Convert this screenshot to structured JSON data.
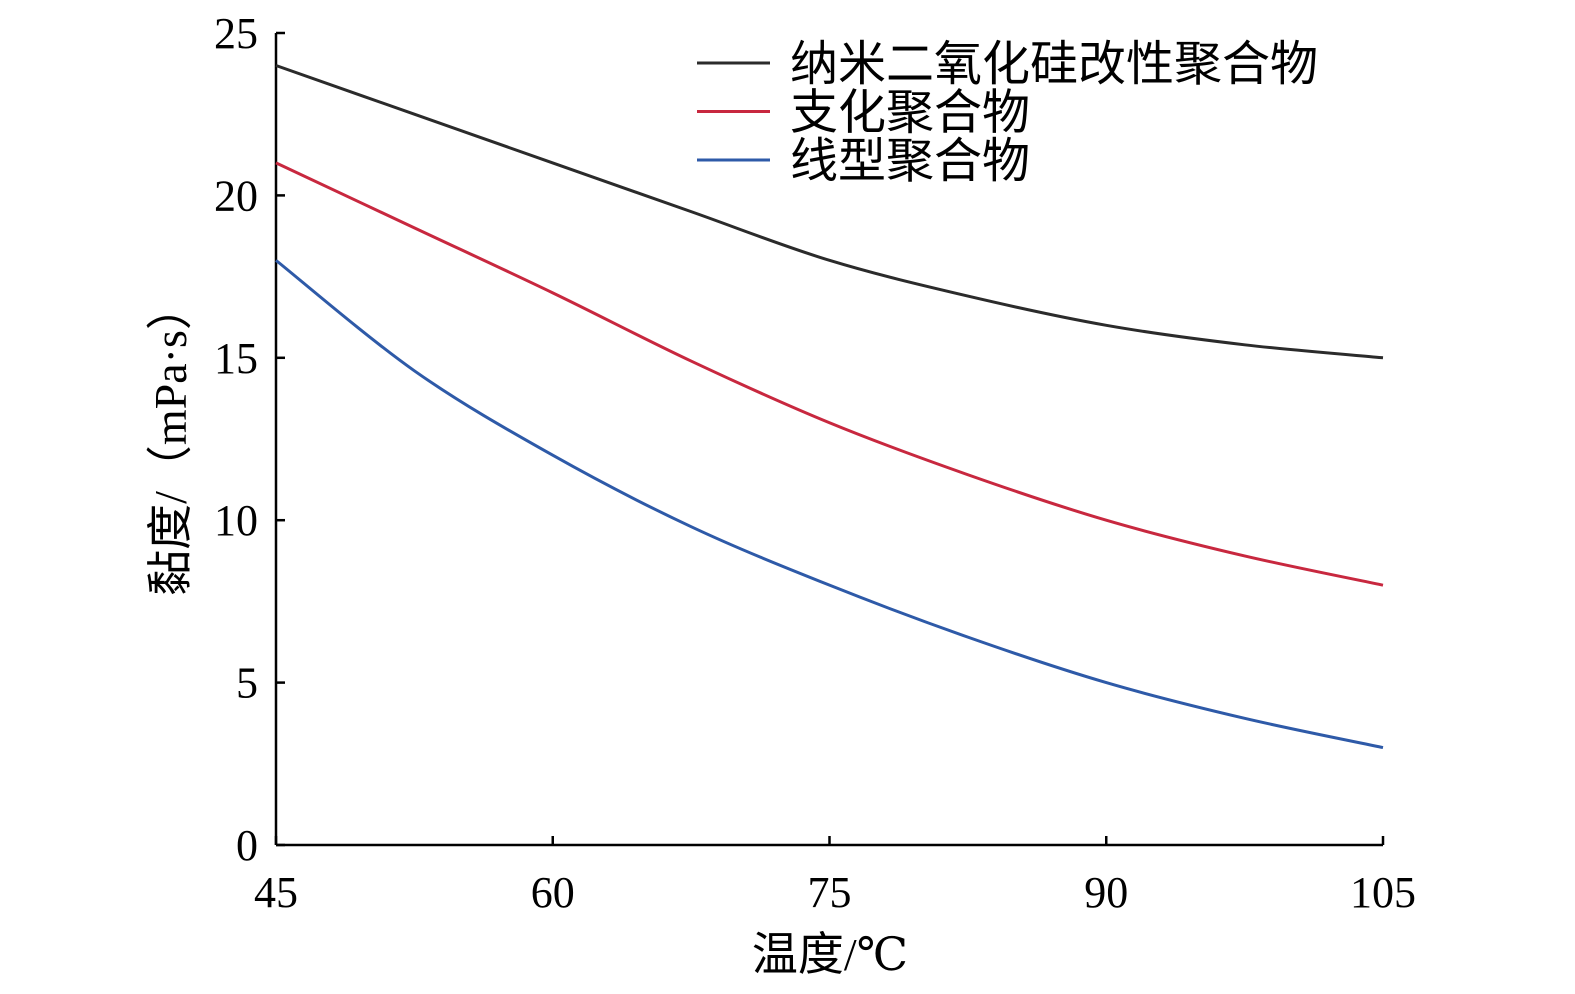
{
  "chart_data": {
    "type": "line",
    "title": "",
    "xlabel": "温度/℃",
    "ylabel": "黏度/（mPa·s）",
    "xlim": [
      45,
      105
    ],
    "ylim": [
      0,
      25
    ],
    "xticks": [
      45,
      60,
      75,
      90,
      105
    ],
    "yticks": [
      0,
      5,
      10,
      15,
      20,
      25
    ],
    "x": [
      45,
      52.5,
      60,
      67.5,
      75,
      82.5,
      90,
      97.5,
      105
    ],
    "legend_position": "top-right",
    "grid": false,
    "series": [
      {
        "name": "纳米二氧化硅改性聚合物",
        "color": "#2b2b2b",
        "values": [
          24,
          22.5,
          21,
          19.5,
          18,
          16.9,
          16,
          15.4,
          15
        ]
      },
      {
        "name": "支化聚合物",
        "color": "#c8283f",
        "values": [
          21,
          19,
          17,
          14.9,
          13,
          11.4,
          10,
          8.9,
          8
        ]
      },
      {
        "name": "线型聚合物",
        "color": "#2e5aa8",
        "values": [
          18,
          14.6,
          12,
          9.8,
          8,
          6.4,
          5,
          3.9,
          3
        ]
      }
    ]
  }
}
